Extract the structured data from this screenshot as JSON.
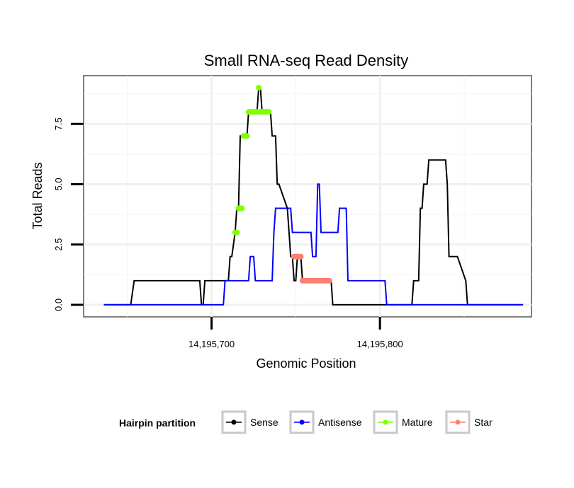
{
  "chart_data": {
    "type": "line",
    "title": "Small RNA-seq Read Density",
    "xlabel": "Genomic Position",
    "ylabel": "Total Reads",
    "xlim": [
      14195624,
      14195890
    ],
    "ylim": [
      -0.5,
      9.5
    ],
    "xticks": [
      {
        "value": 14195700,
        "label": "14,195,700"
      },
      {
        "value": 14195800,
        "label": "14,195,800"
      }
    ],
    "yticks": [
      {
        "value": 0,
        "label": "0.0"
      },
      {
        "value": 2.5,
        "label": "2.5"
      },
      {
        "value": 5,
        "label": "5.0"
      },
      {
        "value": 7.5,
        "label": "7.5"
      }
    ],
    "legend": {
      "title": "Hairpin partition",
      "position": "bottom",
      "entries": [
        {
          "name": "Sense",
          "color": "#000000"
        },
        {
          "name": "Antisense",
          "color": "#0000ff"
        },
        {
          "name": "Mature",
          "color": "#7fff00"
        },
        {
          "name": "Star",
          "color": "#fa8072"
        }
      ]
    },
    "series": [
      {
        "name": "Sense",
        "color": "#000000",
        "style": "line",
        "x": [
          14195636,
          14195652,
          14195654,
          14195693,
          14195694,
          14195695,
          14195696,
          14195709,
          14195710,
          14195711,
          14195712,
          14195714,
          14195715,
          14195716,
          14195717,
          14195721,
          14195722,
          14195727,
          14195728,
          14195729,
          14195730,
          14195732,
          14195733,
          14195735,
          14195736,
          14195737,
          14195738,
          14195739,
          14195740,
          14195745,
          14195746,
          14195747,
          14195748,
          14195749,
          14195750,
          14195751,
          14195753,
          14195754,
          14195756,
          14195757,
          14195758,
          14195760,
          14195761,
          14195762,
          14195764,
          14195765,
          14195766,
          14195767,
          14195768,
          14195769,
          14195770,
          14195771,
          14195772,
          14195774,
          14195776,
          14195778,
          14195779,
          14195818,
          14195819,
          14195820,
          14195823,
          14195824,
          14195825,
          14195826,
          14195828,
          14195829,
          14195831,
          14195832,
          14195839,
          14195840,
          14195841,
          14195842,
          14195845,
          14195846,
          14195851,
          14195852,
          14195885
        ],
        "y": [
          0,
          0,
          1,
          1,
          0,
          0,
          1,
          1,
          1,
          2,
          2,
          3,
          4,
          4,
          7,
          7,
          8,
          8,
          9,
          9,
          8,
          8,
          8,
          8,
          7,
          7,
          7,
          5,
          5,
          4,
          3,
          2,
          2,
          1,
          1,
          2,
          2,
          1,
          1,
          1,
          1,
          1,
          1,
          1,
          1,
          1,
          1,
          1,
          1,
          1,
          1,
          1,
          0,
          0,
          0,
          0,
          0,
          0,
          0,
          1,
          1,
          4,
          4,
          5,
          5,
          6,
          6,
          6,
          6,
          5,
          2,
          2,
          2,
          2,
          1,
          0,
          0
        ]
      },
      {
        "name": "Antisense",
        "color": "#0000ff",
        "style": "line",
        "x": [
          14195636,
          14195707,
          14195708,
          14195722,
          14195723,
          14195725,
          14195726,
          14195736,
          14195737,
          14195738,
          14195747,
          14195748,
          14195759,
          14195760,
          14195762,
          14195763,
          14195764,
          14195765,
          14195766,
          14195775,
          14195776,
          14195780,
          14195781,
          14195803,
          14195804,
          14195885
        ],
        "y": [
          0,
          0,
          1,
          1,
          2,
          2,
          1,
          1,
          3,
          4,
          4,
          3,
          3,
          2,
          2,
          5,
          5,
          3,
          3,
          3,
          4,
          4,
          1,
          1,
          0,
          0
        ]
      },
      {
        "name": "Mature",
        "color": "#7fff00",
        "style": "markers",
        "points": [
          {
            "x": 14195714,
            "y": 3
          },
          {
            "x": 14195715,
            "y": 3
          },
          {
            "x": 14195716,
            "y": 4
          },
          {
            "x": 14195717,
            "y": 4
          },
          {
            "x": 14195718,
            "y": 4
          },
          {
            "x": 14195719,
            "y": 7
          },
          {
            "x": 14195720,
            "y": 7
          },
          {
            "x": 14195721,
            "y": 7
          },
          {
            "x": 14195722,
            "y": 8
          },
          {
            "x": 14195723,
            "y": 8
          },
          {
            "x": 14195724,
            "y": 8
          },
          {
            "x": 14195725,
            "y": 8
          },
          {
            "x": 14195726,
            "y": 8
          },
          {
            "x": 14195727,
            "y": 8
          },
          {
            "x": 14195728,
            "y": 9
          },
          {
            "x": 14195729,
            "y": 8
          },
          {
            "x": 14195730,
            "y": 8
          },
          {
            "x": 14195731,
            "y": 8
          },
          {
            "x": 14195732,
            "y": 8
          },
          {
            "x": 14195733,
            "y": 8
          },
          {
            "x": 14195734,
            "y": 8
          }
        ]
      },
      {
        "name": "Star",
        "color": "#fa8072",
        "style": "markers",
        "points": [
          {
            "x": 14195749,
            "y": 2
          },
          {
            "x": 14195750,
            "y": 2
          },
          {
            "x": 14195751,
            "y": 2
          },
          {
            "x": 14195752,
            "y": 2
          },
          {
            "x": 14195753,
            "y": 2
          },
          {
            "x": 14195754,
            "y": 1
          },
          {
            "x": 14195755,
            "y": 1
          },
          {
            "x": 14195756,
            "y": 1
          },
          {
            "x": 14195757,
            "y": 1
          },
          {
            "x": 14195758,
            "y": 1
          },
          {
            "x": 14195759,
            "y": 1
          },
          {
            "x": 14195760,
            "y": 1
          },
          {
            "x": 14195761,
            "y": 1
          },
          {
            "x": 14195762,
            "y": 1
          },
          {
            "x": 14195763,
            "y": 1
          },
          {
            "x": 14195764,
            "y": 1
          },
          {
            "x": 14195765,
            "y": 1
          },
          {
            "x": 14195766,
            "y": 1
          },
          {
            "x": 14195767,
            "y": 1
          },
          {
            "x": 14195768,
            "y": 1
          },
          {
            "x": 14195769,
            "y": 1
          },
          {
            "x": 14195770,
            "y": 1
          }
        ]
      }
    ]
  }
}
